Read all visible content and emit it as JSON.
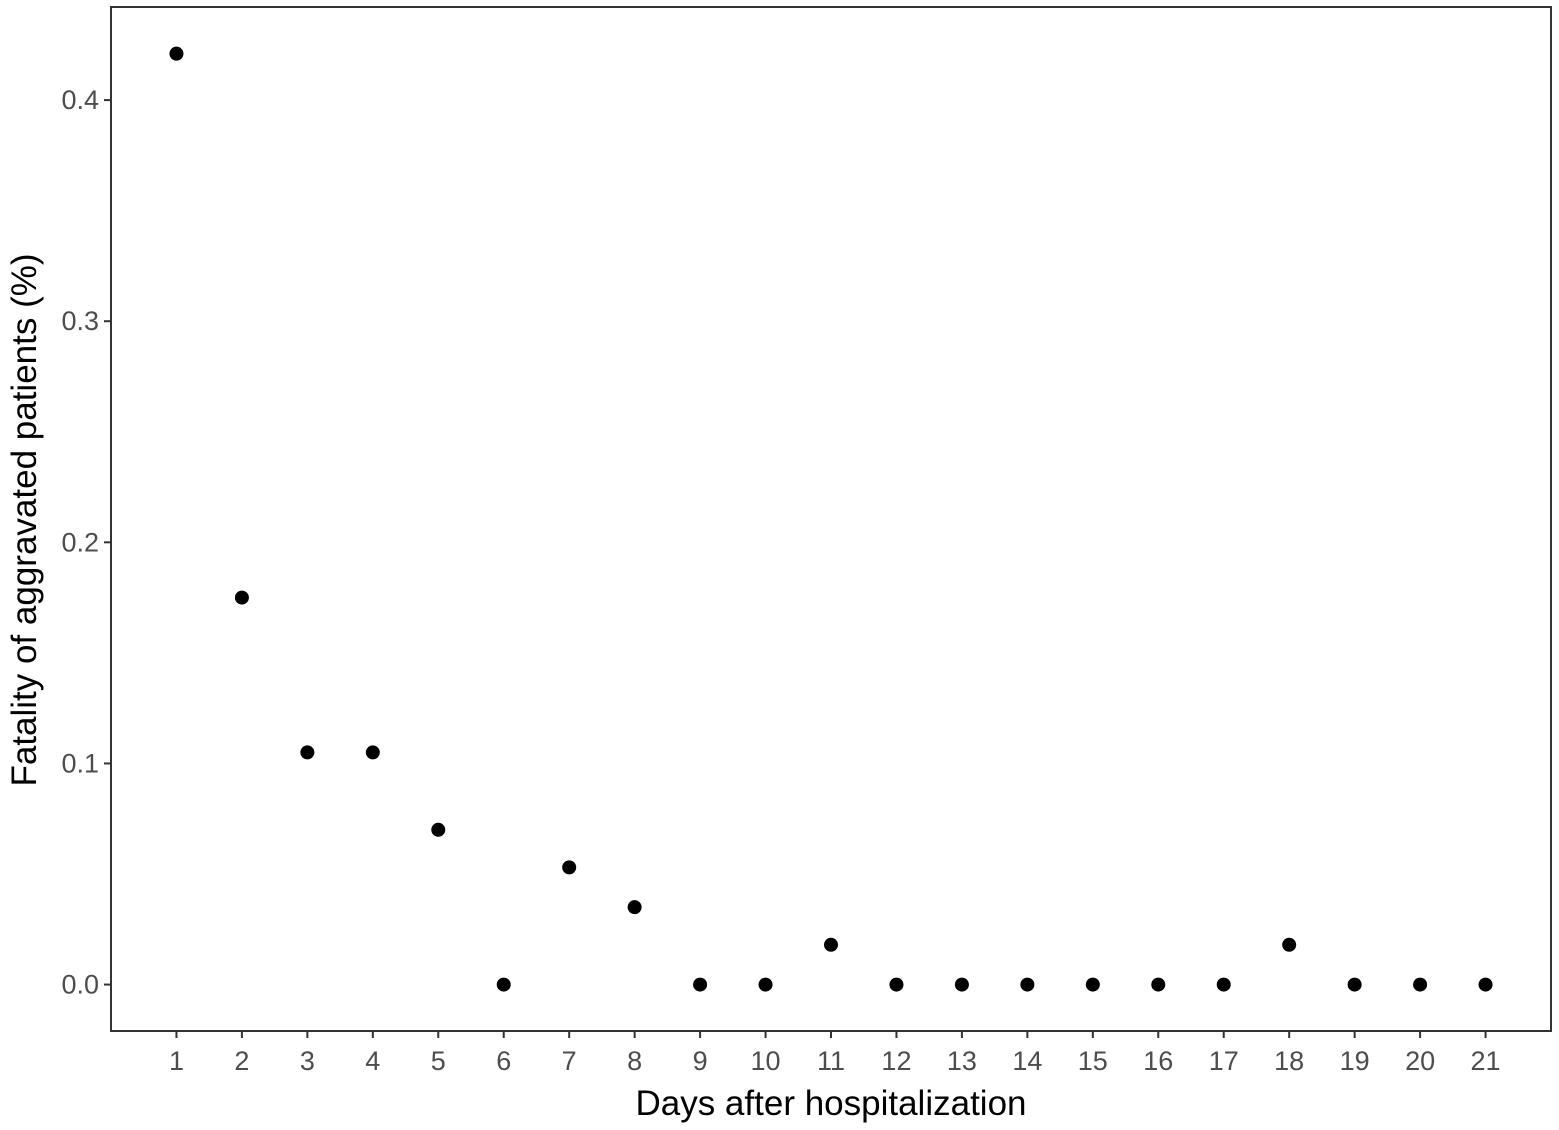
{
  "chart_data": {
    "type": "scatter",
    "title": "",
    "xlabel": "Days after hospitalization",
    "ylabel": "Fatality of aggravated patients (%)",
    "x": [
      1,
      2,
      3,
      4,
      5,
      6,
      7,
      8,
      9,
      10,
      11,
      12,
      13,
      14,
      15,
      16,
      17,
      18,
      19,
      20,
      21
    ],
    "y": [
      0.421,
      0.175,
      0.105,
      0.105,
      0.07,
      0.0,
      0.053,
      0.035,
      0.0,
      0.0,
      0.018,
      0.0,
      0.0,
      0.0,
      0.0,
      0.0,
      0.0,
      0.018,
      0.0,
      0.0,
      0.0
    ],
    "xlim": [
      0.0,
      22.0
    ],
    "ylim": [
      -0.021,
      0.4421
    ],
    "x_ticks": [
      1,
      2,
      3,
      4,
      5,
      6,
      7,
      8,
      9,
      10,
      11,
      12,
      13,
      14,
      15,
      16,
      17,
      18,
      19,
      20,
      21
    ],
    "x_tick_labels": [
      "1",
      "2",
      "3",
      "4",
      "5",
      "6",
      "7",
      "8",
      "9",
      "10",
      "11",
      "12",
      "13",
      "14",
      "15",
      "16",
      "17",
      "18",
      "19",
      "20",
      "21"
    ],
    "y_ticks": [
      0.0,
      0.1,
      0.2,
      0.3,
      0.4
    ],
    "y_tick_labels": [
      "0.0",
      "0.1",
      "0.2",
      "0.3",
      "0.4"
    ],
    "grid": false,
    "legend": "none",
    "point_color": "#000000",
    "axis_color": "#333333",
    "tick_label_color": "#4d4d4d"
  }
}
